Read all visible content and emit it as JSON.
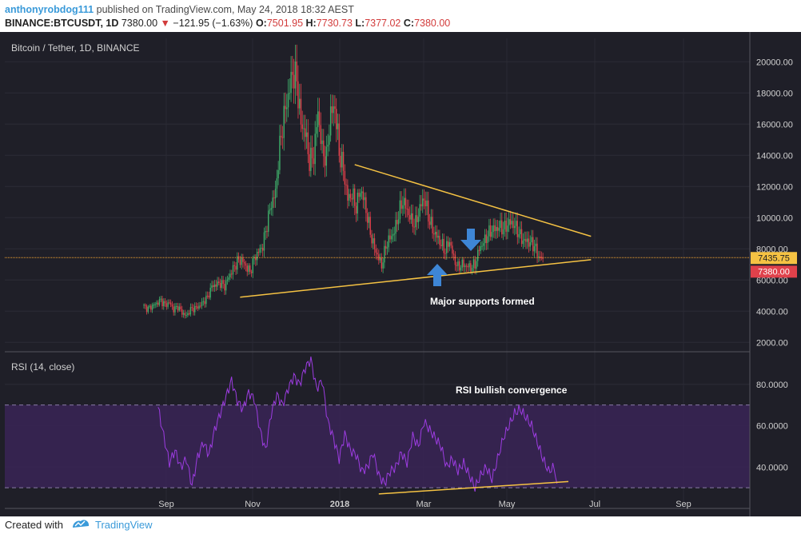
{
  "header": {
    "author": "anthonyrobdog111",
    "published": "published on TradingView.com, May 24, 2018 18:32 AEST",
    "symbol": "BINANCE:BTCUSDT, 1D",
    "last": "7380.00",
    "change": "−121.95 (−1.63%)",
    "o_label": "O:",
    "o": "7501.95",
    "h_label": "H:",
    "h": "7730.73",
    "l_label": "L:",
    "l": "7377.02",
    "c_label": "C:",
    "c": "7380.00"
  },
  "footer": {
    "created_with": "Created with",
    "brand": "TradingView"
  },
  "colors": {
    "up": "#3fae6a",
    "down": "#e0414b",
    "trendline": "#f5c243",
    "rsi_line": "#9c3ce0",
    "rsi_band": "#3a2456",
    "background": "#1f1f28",
    "price_line": "#f7a531",
    "label_yellow": "#f5c243",
    "label_red": "#e0414b",
    "arrow": "#3e86d6"
  },
  "chart_data": [
    {
      "type": "candlestick",
      "title": "Bitcoin / Tether, 1D, BINANCE",
      "x_range": [
        "2018-08-10",
        "2018-10-22"
      ],
      "x_axis_note": "",
      "yticks": [
        2000,
        4000,
        6000,
        8000,
        10000,
        12000,
        14000,
        16000,
        18000,
        20000
      ],
      "ytick_labels": [
        "2000.00",
        "4000.00",
        "6000.00",
        "8000.00",
        "10000.00",
        "12000.00",
        "14000.00",
        "16000.00",
        "18000.00",
        "20000.00"
      ],
      "ylim": [
        1500,
        21500
      ],
      "xticks": [
        "Sep",
        "Nov",
        "2018",
        "Mar",
        "May",
        "Jul",
        "Sep"
      ],
      "closing_path": [
        [
          0,
          4300
        ],
        [
          3,
          4150
        ],
        [
          6,
          4350
        ],
        [
          9,
          4500
        ],
        [
          12,
          4700
        ],
        [
          15,
          4400
        ],
        [
          18,
          4550
        ],
        [
          21,
          4100
        ],
        [
          24,
          4300
        ],
        [
          27,
          3900
        ],
        [
          30,
          3700
        ],
        [
          33,
          4100
        ],
        [
          36,
          4200
        ],
        [
          39,
          4300
        ],
        [
          42,
          4600
        ],
        [
          45,
          4900
        ],
        [
          48,
          5600
        ],
        [
          51,
          5700
        ],
        [
          54,
          5800
        ],
        [
          57,
          5600
        ],
        [
          60,
          6200
        ],
        [
          63,
          6700
        ],
        [
          66,
          7200
        ],
        [
          69,
          7300
        ],
        [
          72,
          6900
        ],
        [
          75,
          6500
        ],
        [
          78,
          7400
        ],
        [
          81,
          7800
        ],
        [
          84,
          8200
        ],
        [
          87,
          9600
        ],
        [
          90,
          10900
        ],
        [
          93,
          11600
        ],
        [
          96,
          14500
        ],
        [
          99,
          16500
        ],
        [
          102,
          17800
        ],
        [
          105,
          19300
        ],
        [
          108,
          18800
        ],
        [
          111,
          16000
        ],
        [
          114,
          15500
        ],
        [
          117,
          13600
        ],
        [
          120,
          14000
        ],
        [
          123,
          16800
        ],
        [
          126,
          14300
        ],
        [
          129,
          13800
        ],
        [
          132,
          16700
        ],
        [
          135,
          17100
        ],
        [
          138,
          14200
        ],
        [
          141,
          13100
        ],
        [
          144,
          11200
        ],
        [
          147,
          11500
        ],
        [
          150,
          10700
        ],
        [
          153,
          11800
        ],
        [
          156,
          11000
        ],
        [
          159,
          9500
        ],
        [
          162,
          8300
        ],
        [
          165,
          7600
        ],
        [
          168,
          6900
        ],
        [
          171,
          8200
        ],
        [
          174,
          8700
        ],
        [
          177,
          9100
        ],
        [
          180,
          10200
        ],
        [
          183,
          11100
        ],
        [
          186,
          10500
        ],
        [
          189,
          9800
        ],
        [
          192,
          9600
        ],
        [
          195,
          10600
        ],
        [
          198,
          11300
        ],
        [
          201,
          10100
        ],
        [
          204,
          9200
        ],
        [
          207,
          8800
        ],
        [
          210,
          8300
        ],
        [
          213,
          7900
        ],
        [
          216,
          8500
        ],
        [
          219,
          7400
        ],
        [
          222,
          6800
        ],
        [
          225,
          7000
        ],
        [
          228,
          6900
        ],
        [
          231,
          6800
        ],
        [
          234,
          7000
        ],
        [
          237,
          8000
        ],
        [
          240,
          8400
        ],
        [
          243,
          8900
        ],
        [
          246,
          9200
        ],
        [
          249,
          9300
        ],
        [
          252,
          9400
        ],
        [
          255,
          9300
        ],
        [
          258,
          9700
        ],
        [
          261,
          9600
        ],
        [
          264,
          9200
        ],
        [
          267,
          8600
        ],
        [
          270,
          8500
        ],
        [
          273,
          8400
        ],
        [
          276,
          8200
        ],
        [
          279,
          7500
        ],
        [
          282,
          7380
        ]
      ],
      "horizontal_line": 7435.75,
      "price_labels": [
        "7435.75",
        "7380.00"
      ],
      "trendlines": [
        {
          "from": [
            "2017-10-17",
            4900
          ],
          "to": [
            "2018-06-22",
            7300
          ]
        },
        {
          "from": [
            "2018-01-06",
            13400
          ],
          "to": [
            "2018-06-22",
            8800
          ]
        }
      ],
      "annotations": [
        "Major supports formed"
      ]
    },
    {
      "type": "line",
      "title": "RSI (14, close)",
      "yticks": [
        40,
        60,
        80
      ],
      "ytick_labels": [
        "40.0000",
        "60.0000",
        "80.0000"
      ],
      "ylim": [
        20,
        95
      ],
      "band": [
        30,
        70
      ],
      "xticks": [
        "Sep",
        "Nov",
        "2018",
        "Mar",
        "May",
        "Jul",
        "Sep"
      ],
      "values": [
        [
          0,
          69
        ],
        [
          4,
          55
        ],
        [
          8,
          42
        ],
        [
          12,
          48
        ],
        [
          16,
          40
        ],
        [
          20,
          44
        ],
        [
          24,
          31
        ],
        [
          28,
          45
        ],
        [
          32,
          52
        ],
        [
          36,
          46
        ],
        [
          40,
          58
        ],
        [
          44,
          66
        ],
        [
          48,
          74
        ],
        [
          52,
          82
        ],
        [
          56,
          72
        ],
        [
          60,
          68
        ],
        [
          64,
          76
        ],
        [
          68,
          73
        ],
        [
          72,
          58
        ],
        [
          76,
          48
        ],
        [
          80,
          66
        ],
        [
          84,
          75
        ],
        [
          88,
          70
        ],
        [
          92,
          78
        ],
        [
          96,
          84
        ],
        [
          100,
          80
        ],
        [
          104,
          88
        ],
        [
          108,
          92
        ],
        [
          112,
          78
        ],
        [
          116,
          82
        ],
        [
          120,
          62
        ],
        [
          124,
          54
        ],
        [
          128,
          44
        ],
        [
          132,
          56
        ],
        [
          136,
          48
        ],
        [
          140,
          46
        ],
        [
          144,
          38
        ],
        [
          148,
          40
        ],
        [
          152,
          47
        ],
        [
          156,
          36
        ],
        [
          160,
          32
        ],
        [
          164,
          38
        ],
        [
          168,
          40
        ],
        [
          172,
          47
        ],
        [
          176,
          42
        ],
        [
          180,
          55
        ],
        [
          184,
          50
        ],
        [
          188,
          62
        ],
        [
          192,
          58
        ],
        [
          196,
          54
        ],
        [
          200,
          50
        ],
        [
          204,
          40
        ],
        [
          208,
          44
        ],
        [
          212,
          38
        ],
        [
          216,
          42
        ],
        [
          220,
          36
        ],
        [
          224,
          30
        ],
        [
          228,
          36
        ],
        [
          232,
          40
        ],
        [
          236,
          34
        ],
        [
          240,
          44
        ],
        [
          244,
          54
        ],
        [
          248,
          60
        ],
        [
          252,
          66
        ],
        [
          256,
          68
        ],
        [
          260,
          64
        ],
        [
          264,
          60
        ],
        [
          268,
          52
        ],
        [
          272,
          44
        ],
        [
          276,
          38
        ],
        [
          280,
          40
        ],
        [
          282,
          32
        ]
      ],
      "trendline": {
        "from": [
          156,
          27
        ],
        "to": [
          290,
          33
        ]
      },
      "annotations": [
        "RSI bullish convergence"
      ]
    }
  ]
}
